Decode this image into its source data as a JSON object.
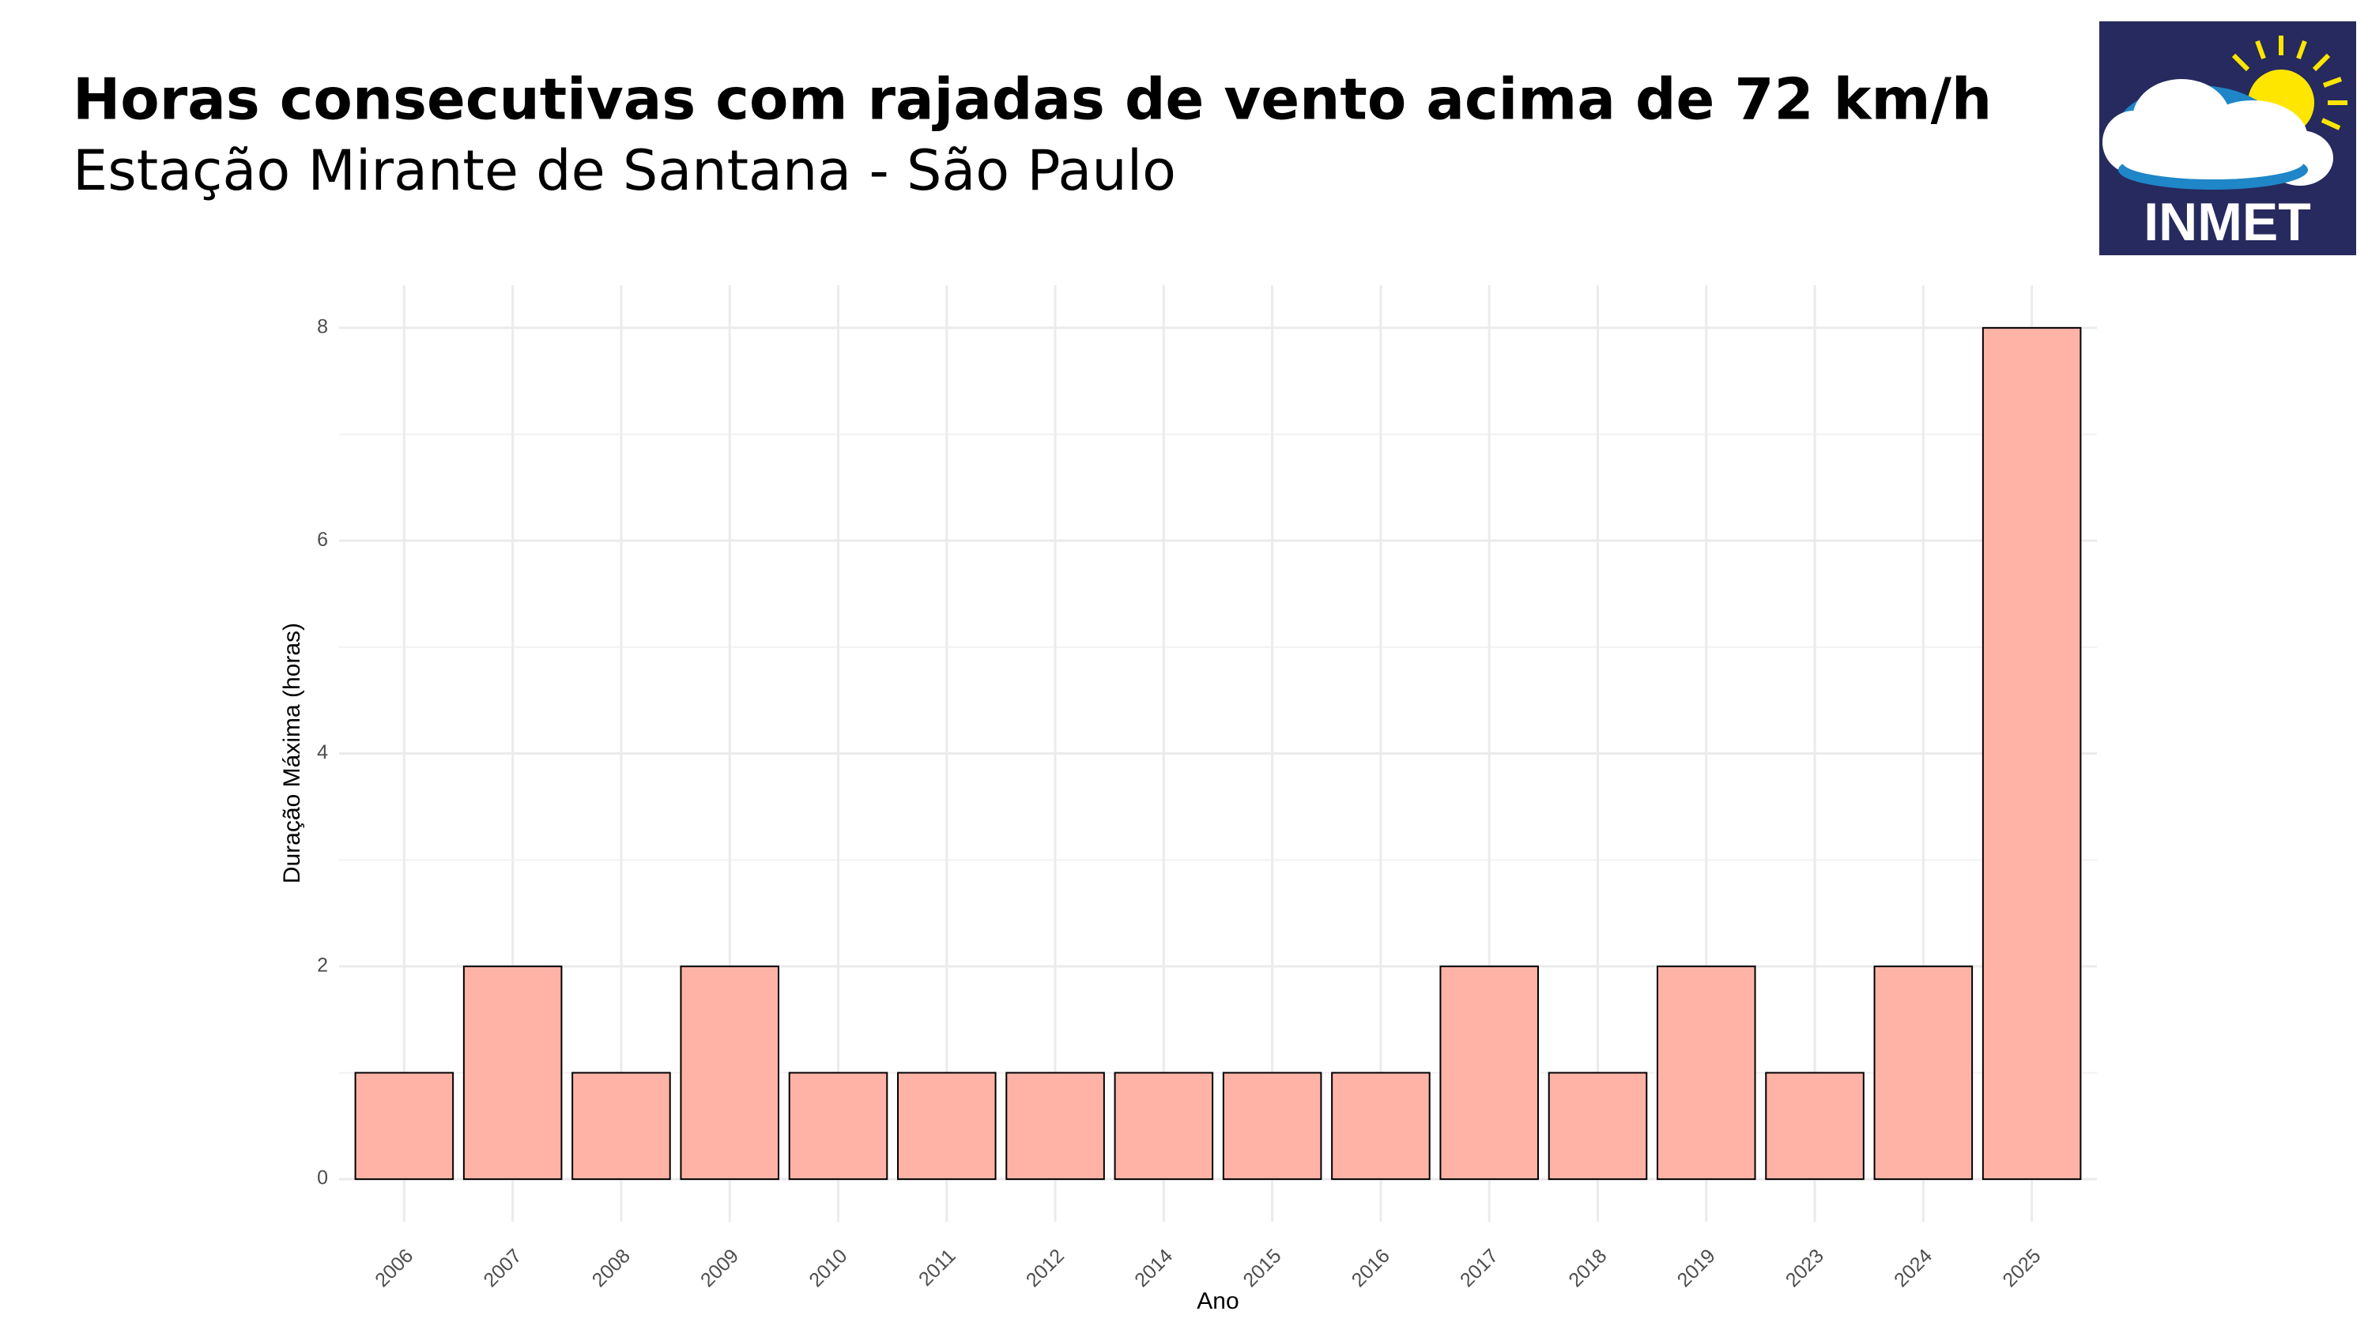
{
  "chart_data": {
    "type": "bar",
    "title": "Horas consecutivas com rajadas de vento acima de 72 km/h",
    "subtitle": "Estação Mirante de Santana - São Paulo",
    "x_label": "Ano",
    "y_label": "Duração Máxima (horas)",
    "categories": [
      "2006",
      "2007",
      "2008",
      "2009",
      "2010",
      "2011",
      "2012",
      "2014",
      "2015",
      "2016",
      "2017",
      "2018",
      "2019",
      "2023",
      "2024",
      "2025"
    ],
    "values": [
      1,
      2,
      1,
      2,
      1,
      1,
      1,
      1,
      1,
      1,
      2,
      1,
      2,
      1,
      2,
      8
    ],
    "color": "#ffb3a7",
    "ylim": [
      -0.4,
      8.4
    ],
    "yticks": [
      0,
      2,
      4,
      6,
      8
    ],
    "grid": true
  },
  "logo": "INMET"
}
